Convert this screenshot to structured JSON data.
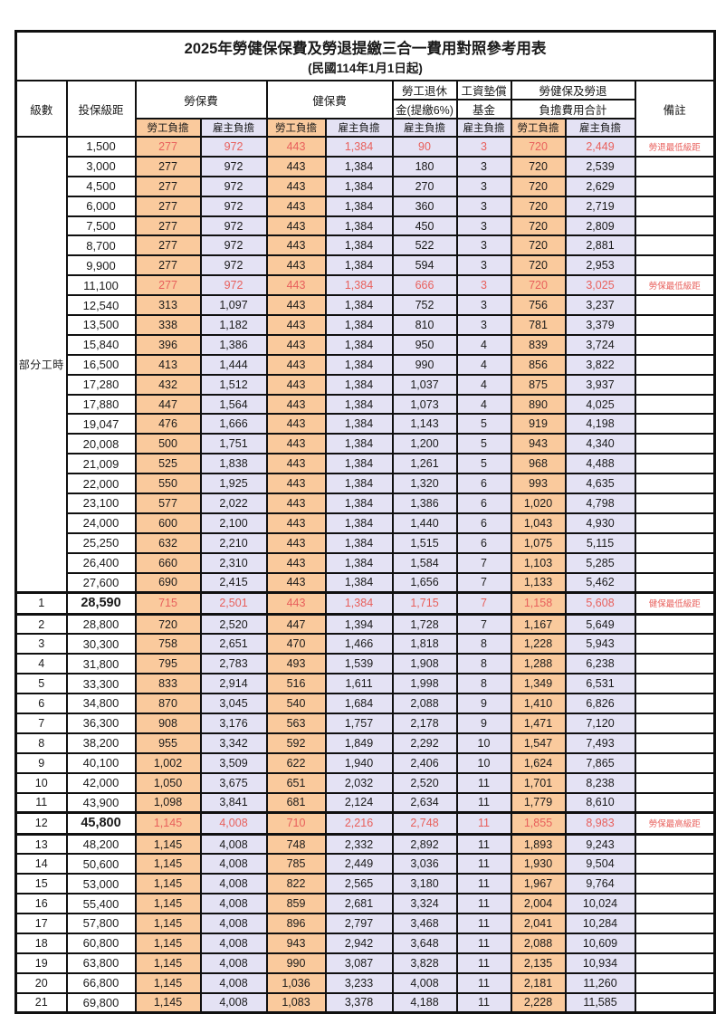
{
  "title": {
    "main": "2025年勞健保保費及勞退提繳三合一費用對照參考用表",
    "sub": "(民國114年1月1日起)"
  },
  "header": {
    "level": "級數",
    "salary": "投保級距",
    "labor": "勞保費",
    "health": "健保費",
    "pension_l1": "勞工退休",
    "pension_l2": "金(提繳6%)",
    "arrears_l1": "工資墊償",
    "arrears_l2": "基金",
    "total_l1": "勞健保及勞退",
    "total_l2": "負擔費用合計",
    "note": "備註",
    "employee": "勞工負擔",
    "employer": "雇主負擔"
  },
  "colors": {
    "employee_bg": "#FACA9D",
    "employer_bg": "#E4E2F4",
    "highlight_red": "#E8605C",
    "border": "#101010"
  },
  "table": {
    "part_time_label": "部分工時",
    "value_columns": [
      "labor-employee",
      "labor-employer",
      "health-employee",
      "health-employer",
      "pension-employer",
      "arrears-employer",
      "total-employee",
      "total-employer"
    ],
    "rows": [
      {
        "level": "部分工時",
        "level_rowspan": 23,
        "salary": "1,500",
        "values": [
          "277",
          "972",
          "443",
          "1,384",
          "90",
          "3",
          "720",
          "2,449"
        ],
        "note": "勞退最低級距",
        "red": true,
        "emphasis": false
      },
      {
        "level": null,
        "salary": "3,000",
        "values": [
          "277",
          "972",
          "443",
          "1,384",
          "180",
          "3",
          "720",
          "2,539"
        ],
        "note": "",
        "red": false,
        "emphasis": false
      },
      {
        "level": null,
        "salary": "4,500",
        "values": [
          "277",
          "972",
          "443",
          "1,384",
          "270",
          "3",
          "720",
          "2,629"
        ],
        "note": "",
        "red": false,
        "emphasis": false
      },
      {
        "level": null,
        "salary": "6,000",
        "values": [
          "277",
          "972",
          "443",
          "1,384",
          "360",
          "3",
          "720",
          "2,719"
        ],
        "note": "",
        "red": false,
        "emphasis": false
      },
      {
        "level": null,
        "salary": "7,500",
        "values": [
          "277",
          "972",
          "443",
          "1,384",
          "450",
          "3",
          "720",
          "2,809"
        ],
        "note": "",
        "red": false,
        "emphasis": false
      },
      {
        "level": null,
        "salary": "8,700",
        "values": [
          "277",
          "972",
          "443",
          "1,384",
          "522",
          "3",
          "720",
          "2,881"
        ],
        "note": "",
        "red": false,
        "emphasis": false
      },
      {
        "level": null,
        "salary": "9,900",
        "values": [
          "277",
          "972",
          "443",
          "1,384",
          "594",
          "3",
          "720",
          "2,953"
        ],
        "note": "",
        "red": false,
        "emphasis": false
      },
      {
        "level": null,
        "salary": "11,100",
        "values": [
          "277",
          "972",
          "443",
          "1,384",
          "666",
          "3",
          "720",
          "3,025"
        ],
        "note": "勞保最低級距",
        "red": true,
        "emphasis": false
      },
      {
        "level": null,
        "salary": "12,540",
        "values": [
          "313",
          "1,097",
          "443",
          "1,384",
          "752",
          "3",
          "756",
          "3,237"
        ],
        "note": "",
        "red": false,
        "emphasis": false
      },
      {
        "level": null,
        "salary": "13,500",
        "values": [
          "338",
          "1,182",
          "443",
          "1,384",
          "810",
          "3",
          "781",
          "3,379"
        ],
        "note": "",
        "red": false,
        "emphasis": false
      },
      {
        "level": null,
        "salary": "15,840",
        "values": [
          "396",
          "1,386",
          "443",
          "1,384",
          "950",
          "4",
          "839",
          "3,724"
        ],
        "note": "",
        "red": false,
        "emphasis": false
      },
      {
        "level": null,
        "salary": "16,500",
        "values": [
          "413",
          "1,444",
          "443",
          "1,384",
          "990",
          "4",
          "856",
          "3,822"
        ],
        "note": "",
        "red": false,
        "emphasis": false
      },
      {
        "level": null,
        "salary": "17,280",
        "values": [
          "432",
          "1,512",
          "443",
          "1,384",
          "1,037",
          "4",
          "875",
          "3,937"
        ],
        "note": "",
        "red": false,
        "emphasis": false
      },
      {
        "level": null,
        "salary": "17,880",
        "values": [
          "447",
          "1,564",
          "443",
          "1,384",
          "1,073",
          "4",
          "890",
          "4,025"
        ],
        "note": "",
        "red": false,
        "emphasis": false
      },
      {
        "level": null,
        "salary": "19,047",
        "values": [
          "476",
          "1,666",
          "443",
          "1,384",
          "1,143",
          "5",
          "919",
          "4,198"
        ],
        "note": "",
        "red": false,
        "emphasis": false
      },
      {
        "level": null,
        "salary": "20,008",
        "values": [
          "500",
          "1,751",
          "443",
          "1,384",
          "1,200",
          "5",
          "943",
          "4,340"
        ],
        "note": "",
        "red": false,
        "emphasis": false
      },
      {
        "level": null,
        "salary": "21,009",
        "values": [
          "525",
          "1,838",
          "443",
          "1,384",
          "1,261",
          "5",
          "968",
          "4,488"
        ],
        "note": "",
        "red": false,
        "emphasis": false
      },
      {
        "level": null,
        "salary": "22,000",
        "values": [
          "550",
          "1,925",
          "443",
          "1,384",
          "1,320",
          "6",
          "993",
          "4,635"
        ],
        "note": "",
        "red": false,
        "emphasis": false
      },
      {
        "level": null,
        "salary": "23,100",
        "values": [
          "577",
          "2,022",
          "443",
          "1,384",
          "1,386",
          "6",
          "1,020",
          "4,798"
        ],
        "note": "",
        "red": false,
        "emphasis": false
      },
      {
        "level": null,
        "salary": "24,000",
        "values": [
          "600",
          "2,100",
          "443",
          "1,384",
          "1,440",
          "6",
          "1,043",
          "4,930"
        ],
        "note": "",
        "red": false,
        "emphasis": false
      },
      {
        "level": null,
        "salary": "25,250",
        "values": [
          "632",
          "2,210",
          "443",
          "1,384",
          "1,515",
          "6",
          "1,075",
          "5,115"
        ],
        "note": "",
        "red": false,
        "emphasis": false
      },
      {
        "level": null,
        "salary": "26,400",
        "values": [
          "660",
          "2,310",
          "443",
          "1,384",
          "1,584",
          "7",
          "1,103",
          "5,285"
        ],
        "note": "",
        "red": false,
        "emphasis": false
      },
      {
        "level": null,
        "salary": "27,600",
        "values": [
          "690",
          "2,415",
          "443",
          "1,384",
          "1,656",
          "7",
          "1,133",
          "5,462"
        ],
        "note": "",
        "red": false,
        "emphasis": false
      },
      {
        "level": "1",
        "salary": "28,590",
        "values": [
          "715",
          "2,501",
          "443",
          "1,384",
          "1,715",
          "7",
          "1,158",
          "5,608"
        ],
        "note": "健保最低級距",
        "red": true,
        "emphasis": true
      },
      {
        "level": "2",
        "salary": "28,800",
        "values": [
          "720",
          "2,520",
          "447",
          "1,394",
          "1,728",
          "7",
          "1,167",
          "5,649"
        ],
        "note": "",
        "red": false,
        "emphasis": false
      },
      {
        "level": "3",
        "salary": "30,300",
        "values": [
          "758",
          "2,651",
          "470",
          "1,466",
          "1,818",
          "8",
          "1,228",
          "5,943"
        ],
        "note": "",
        "red": false,
        "emphasis": false
      },
      {
        "level": "4",
        "salary": "31,800",
        "values": [
          "795",
          "2,783",
          "493",
          "1,539",
          "1,908",
          "8",
          "1,288",
          "6,238"
        ],
        "note": "",
        "red": false,
        "emphasis": false
      },
      {
        "level": "5",
        "salary": "33,300",
        "values": [
          "833",
          "2,914",
          "516",
          "1,611",
          "1,998",
          "8",
          "1,349",
          "6,531"
        ],
        "note": "",
        "red": false,
        "emphasis": false
      },
      {
        "level": "6",
        "salary": "34,800",
        "values": [
          "870",
          "3,045",
          "540",
          "1,684",
          "2,088",
          "9",
          "1,410",
          "6,826"
        ],
        "note": "",
        "red": false,
        "emphasis": false
      },
      {
        "level": "7",
        "salary": "36,300",
        "values": [
          "908",
          "3,176",
          "563",
          "1,757",
          "2,178",
          "9",
          "1,471",
          "7,120"
        ],
        "note": "",
        "red": false,
        "emphasis": false
      },
      {
        "level": "8",
        "salary": "38,200",
        "values": [
          "955",
          "3,342",
          "592",
          "1,849",
          "2,292",
          "10",
          "1,547",
          "7,493"
        ],
        "note": "",
        "red": false,
        "emphasis": false
      },
      {
        "level": "9",
        "salary": "40,100",
        "values": [
          "1,002",
          "3,509",
          "622",
          "1,940",
          "2,406",
          "10",
          "1,624",
          "7,865"
        ],
        "note": "",
        "red": false,
        "emphasis": false
      },
      {
        "level": "10",
        "salary": "42,000",
        "values": [
          "1,050",
          "3,675",
          "651",
          "2,032",
          "2,520",
          "11",
          "1,701",
          "8,238"
        ],
        "note": "",
        "red": false,
        "emphasis": false
      },
      {
        "level": "11",
        "salary": "43,900",
        "values": [
          "1,098",
          "3,841",
          "681",
          "2,124",
          "2,634",
          "11",
          "1,779",
          "8,610"
        ],
        "note": "",
        "red": false,
        "emphasis": false
      },
      {
        "level": "12",
        "salary": "45,800",
        "values": [
          "1,145",
          "4,008",
          "710",
          "2,216",
          "2,748",
          "11",
          "1,855",
          "8,983"
        ],
        "note": "勞保最高級距",
        "red": true,
        "emphasis": true
      },
      {
        "level": "13",
        "salary": "48,200",
        "values": [
          "1,145",
          "4,008",
          "748",
          "2,332",
          "2,892",
          "11",
          "1,893",
          "9,243"
        ],
        "note": "",
        "red": false,
        "emphasis": false
      },
      {
        "level": "14",
        "salary": "50,600",
        "values": [
          "1,145",
          "4,008",
          "785",
          "2,449",
          "3,036",
          "11",
          "1,930",
          "9,504"
        ],
        "note": "",
        "red": false,
        "emphasis": false
      },
      {
        "level": "15",
        "salary": "53,000",
        "values": [
          "1,145",
          "4,008",
          "822",
          "2,565",
          "3,180",
          "11",
          "1,967",
          "9,764"
        ],
        "note": "",
        "red": false,
        "emphasis": false
      },
      {
        "level": "16",
        "salary": "55,400",
        "values": [
          "1,145",
          "4,008",
          "859",
          "2,681",
          "3,324",
          "11",
          "2,004",
          "10,024"
        ],
        "note": "",
        "red": false,
        "emphasis": false
      },
      {
        "level": "17",
        "salary": "57,800",
        "values": [
          "1,145",
          "4,008",
          "896",
          "2,797",
          "3,468",
          "11",
          "2,041",
          "10,284"
        ],
        "note": "",
        "red": false,
        "emphasis": false
      },
      {
        "level": "18",
        "salary": "60,800",
        "values": [
          "1,145",
          "4,008",
          "943",
          "2,942",
          "3,648",
          "11",
          "2,088",
          "10,609"
        ],
        "note": "",
        "red": false,
        "emphasis": false
      },
      {
        "level": "19",
        "salary": "63,800",
        "values": [
          "1,145",
          "4,008",
          "990",
          "3,087",
          "3,828",
          "11",
          "2,135",
          "10,934"
        ],
        "note": "",
        "red": false,
        "emphasis": false
      },
      {
        "level": "20",
        "salary": "66,800",
        "values": [
          "1,145",
          "4,008",
          "1,036",
          "3,233",
          "4,008",
          "11",
          "2,181",
          "11,260"
        ],
        "note": "",
        "red": false,
        "emphasis": false
      },
      {
        "level": "21",
        "salary": "69,800",
        "values": [
          "1,145",
          "4,008",
          "1,083",
          "3,378",
          "4,188",
          "11",
          "2,228",
          "11,585"
        ],
        "note": "",
        "red": false,
        "emphasis": false
      }
    ]
  }
}
